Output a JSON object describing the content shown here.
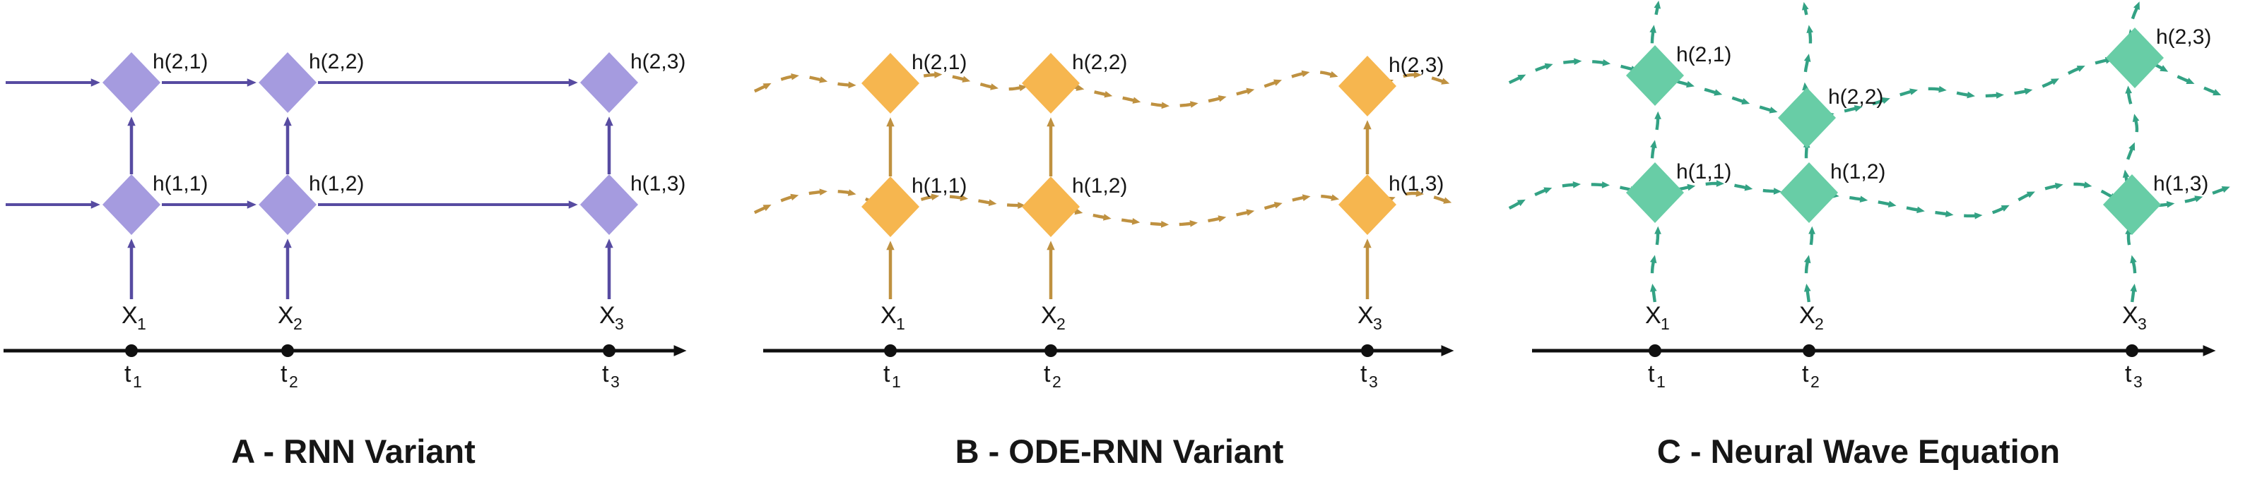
{
  "figure": {
    "background": "#ffffff",
    "text_color": "#161616",
    "timeline_color": "#101010",
    "panels": [
      {
        "title": "A - RNN Variant",
        "node_color": "#a59bdf",
        "arrow_color": "#574ba1",
        "node_labels": [
          "h(2,1)",
          "h(2,2)",
          "h(2,3)",
          "h(1,1)",
          "h(1,2)",
          "h(1,3)"
        ],
        "inputs": [
          {
            "base": "X",
            "sub": "1"
          },
          {
            "base": "X",
            "sub": "2"
          },
          {
            "base": "X",
            "sub": "3"
          }
        ],
        "ticks": [
          {
            "base": "t",
            "sub": "1"
          },
          {
            "base": "t",
            "sub": "2"
          },
          {
            "base": "t",
            "sub": "3"
          }
        ]
      },
      {
        "title": "B - ODE-RNN Variant",
        "node_color": "#f6b64f",
        "arrow_color": "#bf9140",
        "node_labels": [
          "h(2,1)",
          "h(2,2)",
          "h(2,3)",
          "h(1,1)",
          "h(1,2)",
          "h(1,3)"
        ],
        "inputs": [
          {
            "base": "X",
            "sub": "1"
          },
          {
            "base": "X",
            "sub": "2"
          },
          {
            "base": "X",
            "sub": "3"
          }
        ],
        "ticks": [
          {
            "base": "t",
            "sub": "1"
          },
          {
            "base": "t",
            "sub": "2"
          },
          {
            "base": "t",
            "sub": "3"
          }
        ]
      },
      {
        "title": "C - Neural Wave Equation",
        "node_color": "#68cda6",
        "arrow_color": "#33a284",
        "node_labels": [
          "h(2,1)",
          "h(2,2)",
          "h(2,3)",
          "h(1,1)",
          "h(1,2)",
          "h(1,3)"
        ],
        "inputs": [
          {
            "base": "X",
            "sub": "1"
          },
          {
            "base": "X",
            "sub": "2"
          },
          {
            "base": "X",
            "sub": "3"
          }
        ],
        "ticks": [
          {
            "base": "t",
            "sub": "1"
          },
          {
            "base": "t",
            "sub": "2"
          },
          {
            "base": "t",
            "sub": "3"
          }
        ]
      }
    ]
  }
}
